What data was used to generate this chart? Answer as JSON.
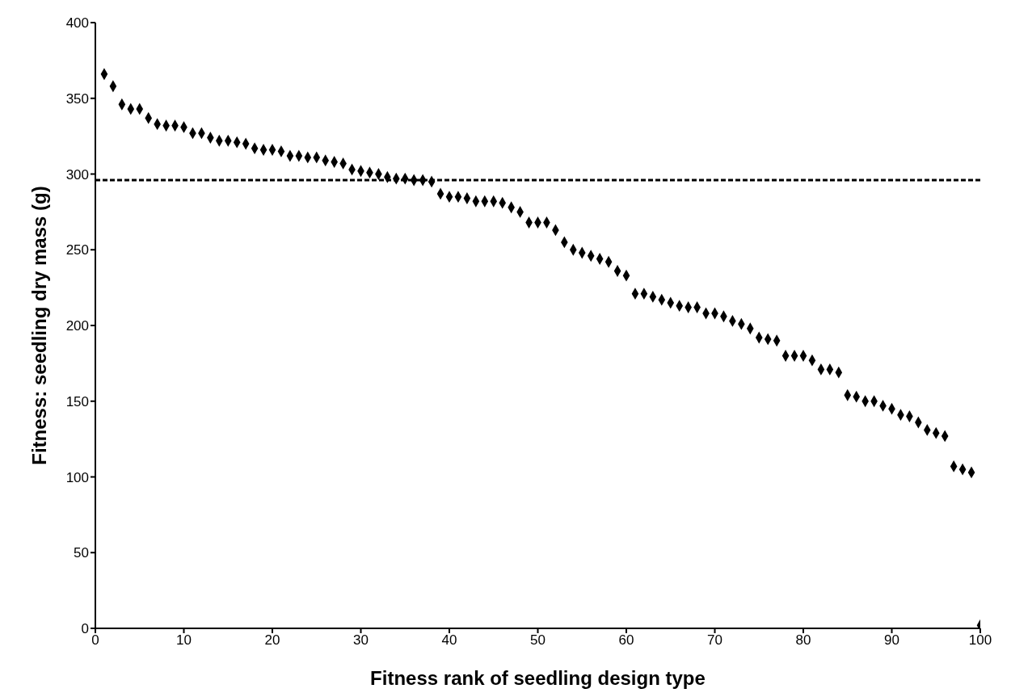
{
  "chart_data": {
    "type": "scatter",
    "xlabel": "Fitness rank of seedling design type",
    "ylabel": "Fitness: seedling dry mass (g)",
    "x": [
      1,
      2,
      3,
      4,
      5,
      6,
      7,
      8,
      9,
      10,
      11,
      12,
      13,
      14,
      15,
      16,
      17,
      18,
      19,
      20,
      21,
      22,
      23,
      24,
      25,
      26,
      27,
      28,
      29,
      30,
      31,
      32,
      33,
      34,
      35,
      36,
      37,
      38,
      39,
      40,
      41,
      42,
      43,
      44,
      45,
      46,
      47,
      48,
      49,
      50,
      51,
      52,
      53,
      54,
      55,
      56,
      57,
      58,
      59,
      60,
      61,
      62,
      63,
      64,
      65,
      66,
      67,
      68,
      69,
      70,
      71,
      72,
      73,
      74,
      75,
      76,
      77,
      78,
      79,
      80,
      81,
      82,
      83,
      84,
      85,
      86,
      87,
      88,
      89,
      90,
      91,
      92,
      93,
      94,
      95,
      96,
      97,
      98,
      99,
      100
    ],
    "series": [
      {
        "color": "#000000",
        "values": [
          366,
          358,
          346,
          343,
          343,
          337,
          333,
          332,
          332,
          331,
          327,
          327,
          324,
          322,
          322,
          321,
          320,
          317,
          316,
          316,
          315,
          312,
          312,
          311,
          311,
          309,
          308,
          307,
          303,
          302,
          301,
          300,
          298,
          297,
          297,
          296,
          296,
          295,
          287,
          285,
          285,
          284,
          282,
          282,
          282,
          281,
          278,
          275,
          268,
          268,
          268,
          263,
          255,
          250,
          248,
          246,
          244,
          242,
          236,
          233,
          221,
          221,
          219,
          217,
          215,
          213,
          212,
          212,
          208,
          208,
          206,
          203,
          201,
          198,
          192,
          191,
          190,
          180,
          180,
          180,
          177,
          171,
          171,
          169,
          154,
          153,
          150,
          150,
          147,
          145,
          141,
          140,
          136,
          131,
          129,
          127,
          107,
          105,
          103,
          2
        ]
      }
    ],
    "xlim": [
      0,
      100
    ],
    "xticks": [
      0,
      10,
      20,
      30,
      40,
      50,
      60,
      70,
      80,
      90,
      100
    ],
    "ylim": [
      0,
      400
    ],
    "yticks": [
      0,
      50,
      100,
      150,
      200,
      250,
      300,
      350,
      400
    ],
    "marker": "diamond",
    "grid": false,
    "legend": false,
    "ref_lines": [
      {
        "axis": "y",
        "value": 296,
        "color": "#000000",
        "line_style": "dashed"
      }
    ]
  }
}
